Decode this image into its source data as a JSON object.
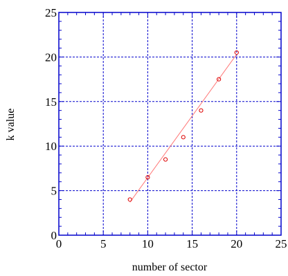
{
  "chart_data": {
    "type": "scatter",
    "xlabel": "number of sector",
    "ylabel": "k value",
    "xlim": [
      0,
      25
    ],
    "ylim": [
      0,
      25
    ],
    "x_ticks": [
      0,
      5,
      10,
      15,
      20,
      25
    ],
    "y_ticks": [
      0,
      5,
      10,
      15,
      20,
      25
    ],
    "x_tick_labels": [
      "0",
      "5",
      "10",
      "15",
      "20",
      "25"
    ],
    "y_tick_labels": [
      "0",
      "5",
      "10",
      "15",
      "20",
      "25"
    ],
    "grid": true,
    "series": [
      {
        "marker": "circle",
        "points": [
          {
            "x": 8,
            "y": 4
          },
          {
            "x": 10,
            "y": 6.5
          },
          {
            "x": 12,
            "y": 8.5
          },
          {
            "x": 14,
            "y": 11
          },
          {
            "x": 16,
            "y": 14
          },
          {
            "x": 18,
            "y": 17.5
          },
          {
            "x": 20,
            "y": 20.5
          }
        ]
      }
    ],
    "fit_line": {
      "x": [
        8,
        20
      ],
      "y": [
        3.7,
        20.3
      ]
    },
    "colors": {
      "frame": "#0000cc",
      "grid": "#0000cc",
      "marker": "#dd0000",
      "fit_line": "#ff7777"
    }
  }
}
